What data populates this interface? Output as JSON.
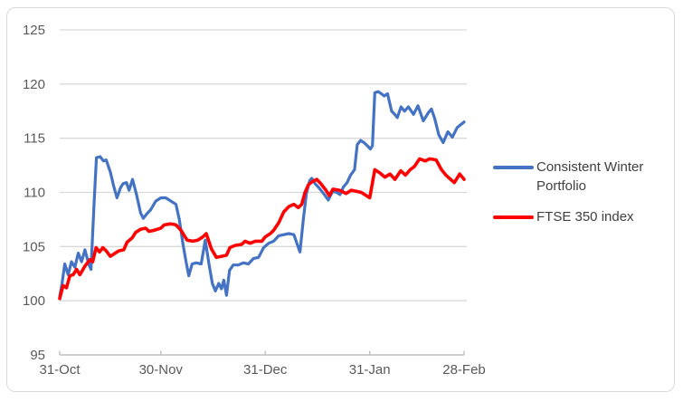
{
  "chart_data": {
    "type": "line",
    "title": "",
    "xlabel": "",
    "ylabel": "",
    "grid": "horizontal",
    "legend_position": "right",
    "y_axis": {
      "ticks": [
        95,
        100,
        105,
        110,
        115,
        120,
        125
      ],
      "range": [
        95,
        125
      ]
    },
    "x_axis": {
      "unit": "days since 31-Oct",
      "range_days": [
        0,
        120
      ],
      "tick_days": [
        0,
        30,
        61,
        92,
        120
      ],
      "tick_labels": [
        "31-Oct",
        "30-Nov",
        "31-Dec",
        "31-Jan",
        "28-Feb"
      ]
    },
    "series": [
      {
        "name": "Consistent Winter Portfolio",
        "color": "#4472C4",
        "points": [
          [
            0,
            100.4
          ],
          [
            0.7,
            101.6
          ],
          [
            1.5,
            103.4
          ],
          [
            2.5,
            102.4
          ],
          [
            3.5,
            103.6
          ],
          [
            4.5,
            103.1
          ],
          [
            5.5,
            104.4
          ],
          [
            6.5,
            103.6
          ],
          [
            7.5,
            104.7
          ],
          [
            8.6,
            103.4
          ],
          [
            9.3,
            102.9
          ],
          [
            10.2,
            109.0
          ],
          [
            10.9,
            113.2
          ],
          [
            12,
            113.3
          ],
          [
            13,
            112.9
          ],
          [
            13.8,
            113.0
          ],
          [
            15,
            111.9
          ],
          [
            16,
            110.6
          ],
          [
            17,
            109.5
          ],
          [
            18,
            110.4
          ],
          [
            18.8,
            110.8
          ],
          [
            19.8,
            110.9
          ],
          [
            20.6,
            110.2
          ],
          [
            21.6,
            111.2
          ],
          [
            22.8,
            109.8
          ],
          [
            24,
            108.1
          ],
          [
            24.8,
            107.6
          ],
          [
            25.8,
            108.0
          ],
          [
            27,
            108.4
          ],
          [
            28.5,
            109.2
          ],
          [
            30,
            109.5
          ],
          [
            31.5,
            109.5
          ],
          [
            33,
            109.2
          ],
          [
            34.5,
            108.9
          ],
          [
            35.5,
            107.5
          ],
          [
            36.6,
            105.2
          ],
          [
            37.6,
            103.4
          ],
          [
            38.3,
            102.3
          ],
          [
            39.3,
            103.4
          ],
          [
            40.5,
            103.5
          ],
          [
            42,
            103.4
          ],
          [
            43.2,
            105.6
          ],
          [
            44.3,
            103.4
          ],
          [
            45.3,
            101.6
          ],
          [
            46.2,
            100.9
          ],
          [
            47.2,
            101.6
          ],
          [
            48,
            101.1
          ],
          [
            48.7,
            101.9
          ],
          [
            49.5,
            100.5
          ],
          [
            50.4,
            102.8
          ],
          [
            51.5,
            103.3
          ],
          [
            53,
            103.3
          ],
          [
            54.5,
            103.5
          ],
          [
            56,
            103.4
          ],
          [
            57.5,
            103.9
          ],
          [
            59,
            104.0
          ],
          [
            60.5,
            104.9
          ],
          [
            62,
            105.3
          ],
          [
            63.5,
            105.5
          ],
          [
            65,
            106.0
          ],
          [
            66.5,
            106.1
          ],
          [
            68,
            106.2
          ],
          [
            69.5,
            106.1
          ],
          [
            70.5,
            105.2
          ],
          [
            71.3,
            104.5
          ],
          [
            72.3,
            107.5
          ],
          [
            73.2,
            109.9
          ],
          [
            74.2,
            111.1
          ],
          [
            74.8,
            111.3
          ],
          [
            75.8,
            110.8
          ],
          [
            77,
            110.4
          ],
          [
            78.3,
            109.9
          ],
          [
            79.7,
            109.3
          ],
          [
            81,
            110.1
          ],
          [
            82.2,
            110.0
          ],
          [
            83.2,
            109.8
          ],
          [
            84.2,
            110.5
          ],
          [
            85.3,
            110.9
          ],
          [
            86.3,
            111.6
          ],
          [
            87.5,
            112.1
          ],
          [
            88.3,
            114.4
          ],
          [
            89.3,
            114.8
          ],
          [
            90.3,
            114.6
          ],
          [
            91.3,
            114.3
          ],
          [
            92.2,
            114.0
          ],
          [
            92.8,
            114.3
          ],
          [
            93.5,
            119.2
          ],
          [
            94.5,
            119.3
          ],
          [
            95.5,
            119.1
          ],
          [
            96.3,
            118.9
          ],
          [
            97.3,
            119.1
          ],
          [
            98.5,
            117.5
          ],
          [
            99.4,
            117.2
          ],
          [
            100.2,
            116.9
          ],
          [
            101.3,
            117.9
          ],
          [
            102.3,
            117.5
          ],
          [
            103.5,
            117.9
          ],
          [
            105,
            117.2
          ],
          [
            106.3,
            118.0
          ],
          [
            107.9,
            116.6
          ],
          [
            109.5,
            117.4
          ],
          [
            110.3,
            117.7
          ],
          [
            111.3,
            116.8
          ],
          [
            112.5,
            115.3
          ],
          [
            113.8,
            114.6
          ],
          [
            115.2,
            115.6
          ],
          [
            116.5,
            115.1
          ],
          [
            118,
            116.0
          ],
          [
            120,
            116.5
          ]
        ]
      },
      {
        "name": "FTSE 350 index",
        "color": "#FF0000",
        "points": [
          [
            0,
            100.2
          ],
          [
            1,
            101.4
          ],
          [
            2,
            101.2
          ],
          [
            3,
            102.3
          ],
          [
            4,
            102.4
          ],
          [
            5,
            102.9
          ],
          [
            6,
            102.4
          ],
          [
            7.5,
            103.2
          ],
          [
            9,
            103.8
          ],
          [
            9.8,
            103.6
          ],
          [
            10.8,
            104.9
          ],
          [
            11.8,
            104.5
          ],
          [
            12.8,
            104.9
          ],
          [
            13.8,
            104.6
          ],
          [
            15,
            104.1
          ],
          [
            16.5,
            104.4
          ],
          [
            17.5,
            104.6
          ],
          [
            19,
            104.7
          ],
          [
            20,
            105.4
          ],
          [
            21.5,
            105.8
          ],
          [
            22.5,
            106.3
          ],
          [
            24,
            106.6
          ],
          [
            25.5,
            106.7
          ],
          [
            26.5,
            106.4
          ],
          [
            28,
            106.5
          ],
          [
            30,
            106.7
          ],
          [
            31,
            107.0
          ],
          [
            33,
            107.1
          ],
          [
            34.5,
            107.0
          ],
          [
            36,
            106.5
          ],
          [
            37.8,
            105.6
          ],
          [
            39.5,
            105.5
          ],
          [
            41,
            105.6
          ],
          [
            42.5,
            105.9
          ],
          [
            43.5,
            106.2
          ],
          [
            45,
            104.8
          ],
          [
            46.5,
            104.0
          ],
          [
            48,
            104.1
          ],
          [
            49.5,
            104.2
          ],
          [
            50.5,
            104.9
          ],
          [
            52,
            105.1
          ],
          [
            54,
            105.2
          ],
          [
            55,
            105.5
          ],
          [
            56.5,
            105.3
          ],
          [
            58,
            105.5
          ],
          [
            60,
            105.5
          ],
          [
            61,
            105.9
          ],
          [
            62.5,
            106.2
          ],
          [
            63.5,
            106.5
          ],
          [
            65,
            107.2
          ],
          [
            66.5,
            108.2
          ],
          [
            68,
            108.7
          ],
          [
            69.5,
            108.9
          ],
          [
            70.8,
            108.6
          ],
          [
            71.8,
            108.9
          ],
          [
            72.8,
            110.0
          ],
          [
            73.8,
            110.7
          ],
          [
            75,
            111.0
          ],
          [
            76.3,
            111.2
          ],
          [
            77.5,
            110.8
          ],
          [
            79,
            110.2
          ],
          [
            80,
            109.7
          ],
          [
            81.1,
            110.3
          ],
          [
            83,
            110.2
          ],
          [
            85,
            109.9
          ],
          [
            86.5,
            110.2
          ],
          [
            88,
            110.1
          ],
          [
            89.5,
            110.0
          ],
          [
            91,
            109.7
          ],
          [
            92,
            109.5
          ],
          [
            93.5,
            112.1
          ],
          [
            95,
            111.8
          ],
          [
            96.5,
            111.4
          ],
          [
            98,
            111.7
          ],
          [
            99.5,
            111.2
          ],
          [
            101.2,
            112.0
          ],
          [
            102.6,
            111.6
          ],
          [
            104,
            112.1
          ],
          [
            105.3,
            112.4
          ],
          [
            106.8,
            113.1
          ],
          [
            108.5,
            112.9
          ],
          [
            109.8,
            113.1
          ],
          [
            111.7,
            113.0
          ],
          [
            113.3,
            112.1
          ],
          [
            114.6,
            111.6
          ],
          [
            116,
            111.2
          ],
          [
            117.1,
            110.9
          ],
          [
            118.7,
            111.7
          ],
          [
            120,
            111.2
          ]
        ]
      }
    ],
    "colors": {
      "gridline": "#D9D9D9",
      "axis_line": "#BFBFBF",
      "tick_label": "#595959",
      "legend_text": "#404040"
    }
  },
  "legend": {
    "item1": "Consistent Winter Portfolio",
    "item2": "FTSE 350 index"
  }
}
